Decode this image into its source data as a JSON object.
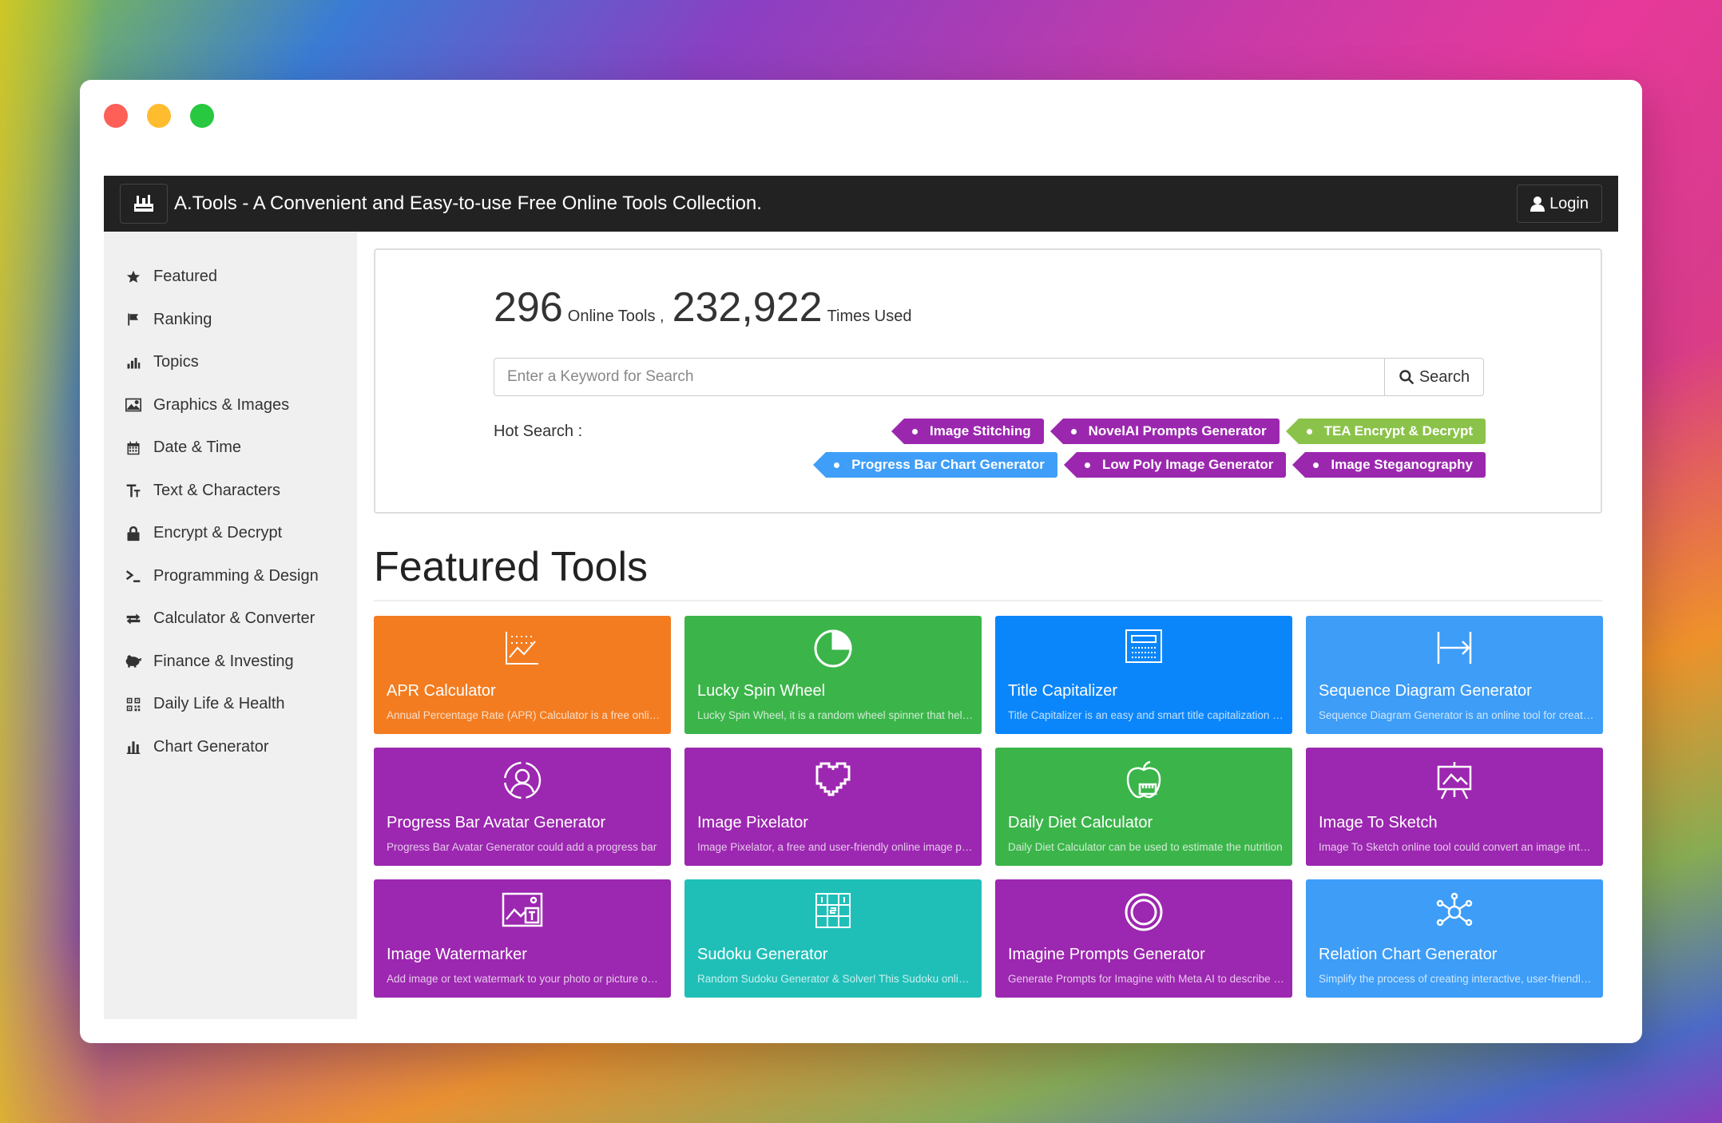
{
  "navbar": {
    "title": "A.Tools - A Convenient and Easy-to-use Free Online Tools Collection.",
    "logo_icon": "toolbox-icon",
    "login_label": "Login"
  },
  "sidebar": {
    "items": [
      {
        "label": "Featured",
        "icon": "star-icon"
      },
      {
        "label": "Ranking",
        "icon": "flag-icon"
      },
      {
        "label": "Topics",
        "icon": "bar-chart-icon"
      },
      {
        "label": "Graphics & Images",
        "icon": "image-icon"
      },
      {
        "label": "Date & Time",
        "icon": "calendar-icon"
      },
      {
        "label": "Text & Characters",
        "icon": "text-size-icon"
      },
      {
        "label": "Encrypt & Decrypt",
        "icon": "lock-icon"
      },
      {
        "label": "Programming & Design",
        "icon": "terminal-icon"
      },
      {
        "label": "Calculator & Converter",
        "icon": "transfer-icon"
      },
      {
        "label": "Finance & Investing",
        "icon": "piggy-bank-icon"
      },
      {
        "label": "Daily Life & Health",
        "icon": "qrcode-icon"
      },
      {
        "label": "Chart Generator",
        "icon": "stats-icon"
      }
    ]
  },
  "stats": {
    "tools_count": "296",
    "tools_label": "Online Tools ,",
    "uses_count": "232,922",
    "uses_label": "Times Used"
  },
  "search": {
    "placeholder": "Enter a Keyword for Search",
    "button_label": "Search"
  },
  "hot_search": {
    "label": "Hot Search :",
    "tags": [
      {
        "label": "Image Stitching",
        "color": "#9b27af"
      },
      {
        "label": "NovelAI Prompts Generator",
        "color": "#9b27af"
      },
      {
        "label": "TEA Encrypt & Decrypt",
        "color": "#8bc34a"
      },
      {
        "label": "Progress Bar Chart Generator",
        "color": "#3f9ef8"
      },
      {
        "label": "Low Poly Image Generator",
        "color": "#9b27af"
      },
      {
        "label": "Image Steganography",
        "color": "#9b27af"
      }
    ]
  },
  "featured": {
    "title": "Featured Tools",
    "tools": [
      {
        "title": "APR Calculator",
        "desc": "Annual Percentage Rate (APR) Calculator is a free online tool",
        "color": "#f37c20",
        "icon": "line-chart-icon"
      },
      {
        "title": "Lucky Spin Wheel",
        "desc": "Lucky Spin Wheel, it is a random wheel spinner that helps you",
        "color": "#3bb54a",
        "icon": "pie-chart-icon"
      },
      {
        "title": "Title Capitalizer",
        "desc": "Title Capitalizer is an easy and smart title capitalization tool",
        "color": "#0b86fa",
        "icon": "document-icon"
      },
      {
        "title": "Sequence Diagram Generator",
        "desc": "Sequence Diagram Generator is an online tool for creating",
        "color": "#3d9df7",
        "icon": "arrow-range-icon"
      },
      {
        "title": "Progress Bar Avatar Generator",
        "desc": "Progress Bar Avatar Generator could add a progress bar",
        "color": "#9c27b0",
        "icon": "avatar-circle-icon"
      },
      {
        "title": "Image Pixelator",
        "desc": "Image Pixelator, a free and user-friendly online image pixelator",
        "color": "#9c27b0",
        "icon": "pixel-heart-icon"
      },
      {
        "title": "Daily Diet Calculator",
        "desc": "Daily Diet Calculator can be used to estimate the nutrition",
        "color": "#3bb54a",
        "icon": "apple-scale-icon"
      },
      {
        "title": "Image To Sketch",
        "desc": "Image To Sketch online tool could convert an image into a sketch",
        "color": "#9c27b0",
        "icon": "easel-icon"
      },
      {
        "title": "Image Watermarker",
        "desc": "Add image or text watermark to your photo or picture online",
        "color": "#9c27b0",
        "icon": "image-text-icon"
      },
      {
        "title": "Sudoku Generator",
        "desc": "Random Sudoku Generator & Solver! This Sudoku online tool",
        "color": "#1fbfb8",
        "icon": "sudoku-grid-icon"
      },
      {
        "title": "Imagine Prompts Generator",
        "desc": "Generate Prompts for Imagine with Meta AI to describe images",
        "color": "#9c27b0",
        "icon": "ring-icon"
      },
      {
        "title": "Relation Chart Generator",
        "desc": "Simplify the process of creating interactive, user-friendly charts",
        "color": "#3d9df7",
        "icon": "network-icon"
      }
    ]
  }
}
